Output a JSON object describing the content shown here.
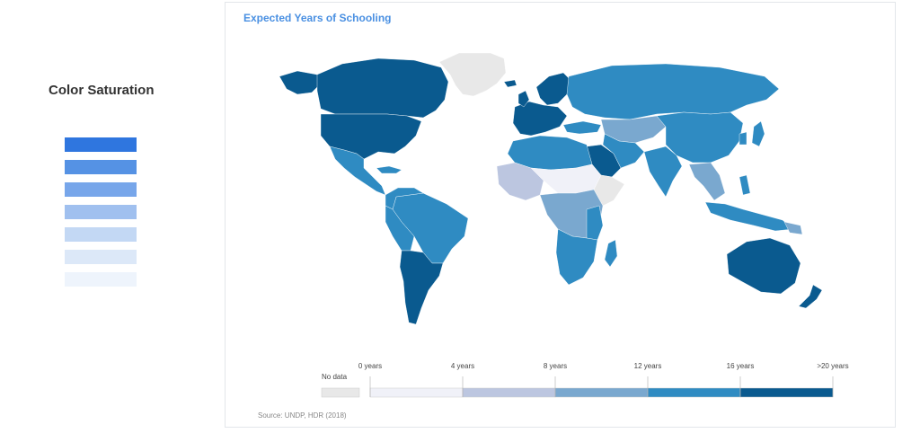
{
  "left_panel": {
    "title": "Color Saturation",
    "swatches": [
      "#2f76df",
      "#5592e4",
      "#77a6ea",
      "#a0c0ef",
      "#c3d8f4",
      "#dce8f8",
      "#eef4fc"
    ]
  },
  "map": {
    "title": "Expected Years of Schooling",
    "source": "Source: UNDP, HDR (2018)",
    "colors": {
      "no_data": "#e8e8e8",
      "bin_0_4": "#f0f1f8",
      "bin_4_8": "#bcc6e0",
      "bin_8_12": "#7aa8cf",
      "bin_12_16": "#2f8bc2",
      "bin_16_20": "#0a5a8f"
    },
    "legend": {
      "no_data_label": "No data",
      "ticks": [
        "0 years",
        "4 years",
        "8 years",
        "12 years",
        "16 years",
        ">20 years"
      ]
    }
  }
}
